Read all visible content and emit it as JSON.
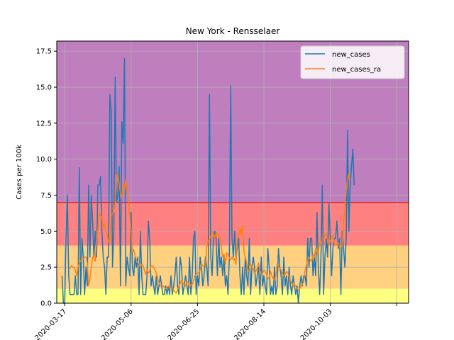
{
  "chart_data": {
    "type": "line",
    "title": "New York - Rensselaer",
    "xlabel": "",
    "ylabel": "Cases per 100k",
    "x_start_date": "2020-03-15",
    "xlim_dates": [
      "2020-03-11",
      "2020-12-01"
    ],
    "ylim": [
      0,
      18.2
    ],
    "x_ticks": [
      "2020-03-17",
      "2020-05-06",
      "2020-06-25",
      "2020-08-14",
      "2020-10-03",
      ""
    ],
    "y_ticks": [
      0.0,
      2.5,
      5.0,
      7.5,
      10.0,
      12.5,
      15.0,
      17.5
    ],
    "y_tick_labels": [
      "0.0",
      "2.5",
      "5.0",
      "7.5",
      "10.0",
      "12.5",
      "15.0",
      "17.5"
    ],
    "grid": true,
    "legend_position": "top-right",
    "bands": [
      {
        "from": 0,
        "to": 1,
        "color": "#ffff80"
      },
      {
        "from": 1,
        "to": 4,
        "color": "#ffd080"
      },
      {
        "from": 4,
        "to": 7,
        "color": "#ff8080"
      },
      {
        "from": 7,
        "to": 18.2,
        "color": "#bf7fbf"
      }
    ],
    "threshold_line": {
      "value": 7,
      "color": "#d62728"
    },
    "series": [
      {
        "name": "new_cases",
        "color": "#1f77b4",
        "values": [
          1.9,
          0.0,
          0.0,
          4.5,
          7.5,
          1.9,
          0.6,
          0.6,
          0.6,
          0.6,
          1.9,
          0.6,
          0.6,
          9.4,
          0.6,
          4.5,
          3.2,
          0.6,
          2.5,
          1.2,
          8.2,
          3.2,
          7.5,
          5.7,
          3.2,
          5.0,
          3.2,
          8.2,
          8.2,
          8.8,
          5.0,
          3.2,
          2.5,
          0.6,
          3.2,
          3.2,
          14.5,
          13.3,
          2.5,
          5.0,
          15.7,
          7.0,
          7.5,
          9.5,
          1.2,
          12.6,
          11.1,
          17.0,
          1.2,
          3.2,
          2.5,
          1.9,
          6.3,
          2.5,
          1.9,
          3.2,
          2.5,
          3.2,
          0.6,
          5.0,
          1.9,
          0.6,
          0.6,
          0.6,
          1.9,
          5.7,
          4.5,
          1.2,
          1.9,
          1.2,
          0.6,
          1.9,
          0.6,
          1.2,
          1.9,
          1.2,
          0.6,
          0.6,
          1.2,
          0.6,
          1.2,
          0.6,
          1.9,
          0.6,
          1.2,
          1.9,
          3.2,
          1.2,
          0.6,
          3.2,
          2.5,
          0.6,
          1.2,
          1.9,
          1.2,
          0.6,
          3.2,
          0.6,
          1.9,
          4.5,
          5.0,
          0.6,
          1.9,
          1.2,
          3.2,
          2.5,
          1.2,
          1.9,
          3.2,
          2.5,
          1.2,
          14.5,
          3.2,
          1.9,
          4.5,
          5.0,
          4.5,
          1.9,
          4.5,
          2.5,
          3.2,
          1.9,
          3.2,
          1.2,
          1.9,
          0.6,
          3.2,
          15.1,
          4.5,
          3.2,
          5.0,
          3.2,
          3.8,
          4.5,
          1.9,
          0.6,
          2.5,
          0.6,
          3.2,
          1.9,
          1.2,
          4.5,
          0.6,
          2.5,
          3.2,
          2.5,
          1.2,
          1.9,
          2.5,
          0.6,
          3.2,
          1.2,
          1.9,
          1.2,
          0.6,
          3.8,
          2.5,
          0.6,
          1.2,
          0.6,
          2.5,
          0.6,
          1.2,
          3.8,
          2.5,
          1.9,
          0.6,
          3.2,
          1.2,
          1.9,
          0.6,
          2.5,
          1.2,
          0.6,
          1.9,
          1.2,
          0.6,
          1.2,
          0.0,
          1.2,
          1.9,
          1.2,
          1.9,
          1.9,
          1.2,
          4.5,
          2.5,
          4.5,
          4.5,
          1.9,
          3.2,
          1.9,
          6.3,
          2.5,
          0.6,
          3.2,
          8.2,
          0.6,
          3.2,
          4.5,
          3.2,
          6.9,
          4.5,
          1.9,
          3.8,
          4.5,
          4.5,
          5.7,
          3.8,
          4.5,
          0.6,
          5.0,
          3.8,
          2.5,
          4.5,
          12.0,
          5.0,
          8.2,
          9.5,
          10.7,
          8.2
        ]
      },
      {
        "name": "new_cases_ra",
        "color": "#ff7f0e",
        "values": [
          null,
          null,
          null,
          null,
          null,
          null,
          2.4,
          2.6,
          2.5,
          2.5,
          2.3,
          1.9,
          2.5,
          2.8,
          2.9,
          3.2,
          3.1,
          3.2,
          3.2,
          2.8,
          1.2,
          1.7,
          2.5,
          3.2,
          3.2,
          2.9,
          4.3,
          5.1,
          6.2,
          6.1,
          5.9,
          5.3,
          5.5,
          5.0,
          4.8,
          4.3,
          4.2,
          6.1,
          6.2,
          6.3,
          7.0,
          8.9,
          9.0,
          8.3,
          7.6,
          7.3,
          8.2,
          7.9,
          8.6,
          7.8,
          7.4,
          6.2,
          5.1,
          3.6,
          3.7,
          3.3,
          3.0,
          2.8,
          2.7,
          2.5,
          2.7,
          2.6,
          2.3,
          2.0,
          2.3,
          2.1,
          2.2,
          2.6,
          2.6,
          2.5,
          2.3,
          2.1,
          1.7,
          1.4,
          1.2,
          1.2,
          1.2,
          1.1,
          1.0,
          1.1,
          1.2,
          1.0,
          1.1,
          1.0,
          0.9,
          0.8,
          0.7,
          0.9,
          1.2,
          1.4,
          1.6,
          1.4,
          1.3,
          1.2,
          1.5,
          1.4,
          1.1,
          1.3,
          1.3,
          1.5,
          1.9,
          2.0,
          2.1,
          2.1,
          2.3,
          2.7,
          2.6,
          2.6,
          2.6,
          3.9,
          4.3,
          4.4,
          4.6,
          5.0,
          4.8,
          4.5,
          4.9,
          4.8,
          4.6,
          4.6,
          3.8,
          3.2,
          3.4,
          2.7,
          3.5,
          3.4,
          3.1,
          3.0,
          3.2,
          3.0,
          3.1,
          2.7,
          4.4,
          4.7,
          5.2,
          4.8,
          5.4,
          3.6,
          3.2,
          2.8,
          2.2,
          2.3,
          2.7,
          2.5,
          2.4,
          2.1,
          2.2,
          2.4,
          2.8,
          2.3,
          2.0,
          2.1,
          2.3,
          2.2,
          2.0,
          1.7,
          1.8,
          2.2,
          1.9,
          1.7,
          1.6,
          1.9,
          2.7,
          2.6,
          2.4,
          2.3,
          2.0,
          1.9,
          2.0,
          2.2,
          2.1,
          1.9,
          1.6,
          1.4,
          1.2,
          1.3,
          1.2,
          1.0,
          0.9,
          1.0,
          1.2,
          1.3,
          1.5,
          2.3,
          2.6,
          3.0,
          3.2,
          3.0,
          2.9,
          3.4,
          3.2,
          3.8,
          3.5,
          3.6,
          4.2,
          4.1,
          4.5,
          4.5,
          4.7,
          4.9,
          4.3,
          4.1,
          4.3,
          4.5,
          4.7,
          4.2,
          4.0,
          4.1,
          4.2,
          3.9,
          3.8,
          4.1,
          5.7,
          6.6,
          7.8,
          8.6,
          9.0,
          8.6
        ]
      }
    ]
  }
}
